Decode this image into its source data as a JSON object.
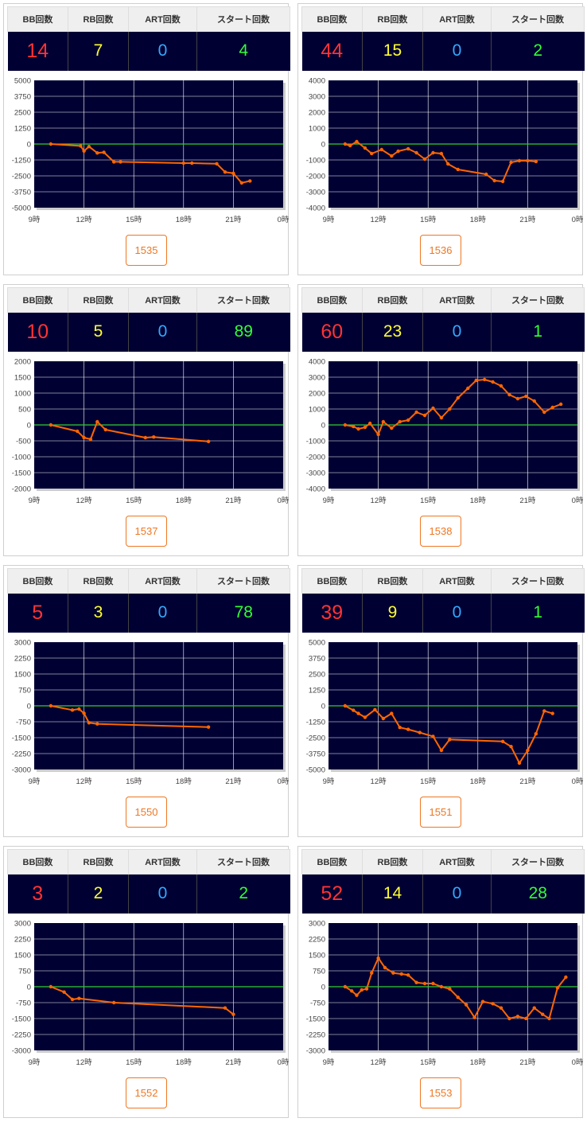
{
  "headers": {
    "bb": "BB回数",
    "rb": "RB回数",
    "art": "ART回数",
    "start": "スタート回数"
  },
  "x_ticks": [
    "9時",
    "12時",
    "15時",
    "18時",
    "21時",
    "0時"
  ],
  "colors": {
    "bb": "#ff3333",
    "rb": "#ffff33",
    "art": "#33aaff",
    "start": "#33ff33",
    "line": "#ff6600",
    "zero": "#33cc33",
    "plot_bg": "#000033",
    "badge": "#ee7722"
  },
  "machines": [
    {
      "id": "1535",
      "bb": "14",
      "rb": "7",
      "art": "0",
      "start": "4",
      "chart_data": {
        "type": "line",
        "x_unit": "hour",
        "xlim": [
          9,
          24
        ],
        "ylim": [
          -5000,
          5000
        ],
        "y_ticks": [
          "5000",
          "3750",
          "2500",
          "1250",
          "0",
          "-1250",
          "-2500",
          "-3750",
          "-5000"
        ],
        "points": [
          [
            10,
            0
          ],
          [
            11.8,
            -150
          ],
          [
            12.0,
            -550
          ],
          [
            12.3,
            -200
          ],
          [
            12.8,
            -700
          ],
          [
            13.2,
            -650
          ],
          [
            13.8,
            -1400
          ],
          [
            14.2,
            -1400
          ],
          [
            18.0,
            -1500
          ],
          [
            18.5,
            -1500
          ],
          [
            20.0,
            -1550
          ],
          [
            20.5,
            -2200
          ],
          [
            21.0,
            -2300
          ],
          [
            21.5,
            -3050
          ],
          [
            22.0,
            -2900
          ]
        ]
      }
    },
    {
      "id": "1536",
      "bb": "44",
      "rb": "15",
      "art": "0",
      "start": "2",
      "chart_data": {
        "type": "line",
        "x_unit": "hour",
        "xlim": [
          9,
          24
        ],
        "ylim": [
          -4000,
          4000
        ],
        "y_ticks": [
          "4000",
          "3000",
          "2000",
          "1000",
          "0",
          "-1000",
          "-2000",
          "-3000",
          "-4000"
        ],
        "points": [
          [
            10,
            0
          ],
          [
            10.3,
            -100
          ],
          [
            10.7,
            150
          ],
          [
            11.2,
            -250
          ],
          [
            11.6,
            -600
          ],
          [
            12.2,
            -350
          ],
          [
            12.8,
            -750
          ],
          [
            13.2,
            -450
          ],
          [
            13.8,
            -300
          ],
          [
            14.3,
            -550
          ],
          [
            14.8,
            -950
          ],
          [
            15.3,
            -550
          ],
          [
            15.8,
            -600
          ],
          [
            16.2,
            -1250
          ],
          [
            16.8,
            -1600
          ],
          [
            18.5,
            -1900
          ],
          [
            19.0,
            -2300
          ],
          [
            19.5,
            -2350
          ],
          [
            20.0,
            -1150
          ],
          [
            20.5,
            -1050
          ],
          [
            21.0,
            -1050
          ],
          [
            21.5,
            -1100
          ]
        ]
      }
    },
    {
      "id": "1537",
      "bb": "10",
      "rb": "5",
      "art": "0",
      "start": "89",
      "chart_data": {
        "type": "line",
        "x_unit": "hour",
        "xlim": [
          9,
          24
        ],
        "ylim": [
          -2000,
          2000
        ],
        "y_ticks": [
          "2000",
          "1500",
          "1000",
          "500",
          "0",
          "-500",
          "-1000",
          "-1500",
          "-2000"
        ],
        "points": [
          [
            10,
            0
          ],
          [
            11.6,
            -200
          ],
          [
            12.0,
            -400
          ],
          [
            12.4,
            -450
          ],
          [
            12.8,
            100
          ],
          [
            13.3,
            -150
          ],
          [
            15.7,
            -400
          ],
          [
            16.2,
            -380
          ],
          [
            19.5,
            -520
          ]
        ]
      }
    },
    {
      "id": "1538",
      "bb": "60",
      "rb": "23",
      "art": "0",
      "start": "1",
      "chart_data": {
        "type": "line",
        "x_unit": "hour",
        "xlim": [
          9,
          24
        ],
        "ylim": [
          -4000,
          4000
        ],
        "y_ticks": [
          "4000",
          "3000",
          "2000",
          "1000",
          "0",
          "-1000",
          "-2000",
          "-3000",
          "-4000"
        ],
        "points": [
          [
            10,
            0
          ],
          [
            10.5,
            -100
          ],
          [
            10.8,
            -250
          ],
          [
            11.2,
            -150
          ],
          [
            11.5,
            100
          ],
          [
            12.0,
            -600
          ],
          [
            12.3,
            200
          ],
          [
            12.8,
            -200
          ],
          [
            13.3,
            200
          ],
          [
            13.8,
            300
          ],
          [
            14.3,
            800
          ],
          [
            14.8,
            600
          ],
          [
            15.3,
            1050
          ],
          [
            15.8,
            450
          ],
          [
            16.3,
            1000
          ],
          [
            16.8,
            1700
          ],
          [
            17.4,
            2300
          ],
          [
            17.9,
            2800
          ],
          [
            18.4,
            2850
          ],
          [
            18.9,
            2700
          ],
          [
            19.4,
            2450
          ],
          [
            19.9,
            1900
          ],
          [
            20.4,
            1650
          ],
          [
            20.9,
            1800
          ],
          [
            21.4,
            1500
          ],
          [
            22.0,
            800
          ],
          [
            22.5,
            1100
          ],
          [
            23.0,
            1300
          ]
        ]
      }
    },
    {
      "id": "1550",
      "bb": "5",
      "rb": "3",
      "art": "0",
      "start": "78",
      "chart_data": {
        "type": "line",
        "x_unit": "hour",
        "xlim": [
          9,
          24
        ],
        "ylim": [
          -3000,
          3000
        ],
        "y_ticks": [
          "3000",
          "2250",
          "1500",
          "750",
          "0",
          "-750",
          "-1500",
          "-2250",
          "-3000"
        ],
        "points": [
          [
            10,
            0
          ],
          [
            11.3,
            -200
          ],
          [
            11.7,
            -150
          ],
          [
            12.0,
            -350
          ],
          [
            12.3,
            -800
          ],
          [
            12.8,
            -850
          ],
          [
            19.5,
            -1000
          ]
        ]
      }
    },
    {
      "id": "1551",
      "bb": "39",
      "rb": "9",
      "art": "0",
      "start": "1",
      "chart_data": {
        "type": "line",
        "x_unit": "hour",
        "xlim": [
          9,
          24
        ],
        "ylim": [
          -5000,
          5000
        ],
        "y_ticks": [
          "5000",
          "3750",
          "2500",
          "1250",
          "0",
          "-1250",
          "-2500",
          "-3750",
          "-5000"
        ],
        "points": [
          [
            10,
            0
          ],
          [
            10.5,
            -350
          ],
          [
            10.8,
            -600
          ],
          [
            11.2,
            -900
          ],
          [
            11.8,
            -300
          ],
          [
            12.3,
            -1000
          ],
          [
            12.8,
            -600
          ],
          [
            13.3,
            -1700
          ],
          [
            13.8,
            -1850
          ],
          [
            14.5,
            -2100
          ],
          [
            15.3,
            -2400
          ],
          [
            15.8,
            -3500
          ],
          [
            16.3,
            -2650
          ],
          [
            19.5,
            -2800
          ],
          [
            20.0,
            -3200
          ],
          [
            20.5,
            -4500
          ],
          [
            21.0,
            -3500
          ],
          [
            21.5,
            -2200
          ],
          [
            22.0,
            -400
          ],
          [
            22.5,
            -600
          ]
        ]
      }
    },
    {
      "id": "1552",
      "bb": "3",
      "rb": "2",
      "art": "0",
      "start": "2",
      "chart_data": {
        "type": "line",
        "x_unit": "hour",
        "xlim": [
          9,
          24
        ],
        "ylim": [
          -3000,
          3000
        ],
        "y_ticks": [
          "3000",
          "2250",
          "1500",
          "750",
          "0",
          "-750",
          "-1500",
          "-2250",
          "-3000"
        ],
        "points": [
          [
            10,
            0
          ],
          [
            10.8,
            -250
          ],
          [
            11.3,
            -600
          ],
          [
            11.7,
            -550
          ],
          [
            13.8,
            -750
          ],
          [
            20.5,
            -1000
          ],
          [
            21.0,
            -1300
          ]
        ]
      }
    },
    {
      "id": "1553",
      "bb": "52",
      "rb": "14",
      "art": "0",
      "start": "28",
      "chart_data": {
        "type": "line",
        "x_unit": "hour",
        "xlim": [
          9,
          24
        ],
        "ylim": [
          -3000,
          3000
        ],
        "y_ticks": [
          "3000",
          "2250",
          "1500",
          "750",
          "0",
          "-750",
          "-1500",
          "-2250",
          "-3000"
        ],
        "points": [
          [
            10,
            0
          ],
          [
            10.4,
            -200
          ],
          [
            10.7,
            -400
          ],
          [
            11.0,
            -150
          ],
          [
            11.3,
            -100
          ],
          [
            11.6,
            650
          ],
          [
            12.0,
            1350
          ],
          [
            12.4,
            900
          ],
          [
            12.9,
            650
          ],
          [
            13.4,
            600
          ],
          [
            13.8,
            550
          ],
          [
            14.3,
            200
          ],
          [
            14.8,
            150
          ],
          [
            15.3,
            150
          ],
          [
            15.8,
            0
          ],
          [
            16.3,
            -100
          ],
          [
            16.8,
            -500
          ],
          [
            17.3,
            -850
          ],
          [
            17.8,
            -1450
          ],
          [
            18.3,
            -700
          ],
          [
            18.9,
            -800
          ],
          [
            19.4,
            -1000
          ],
          [
            19.9,
            -1500
          ],
          [
            20.4,
            -1400
          ],
          [
            20.9,
            -1500
          ],
          [
            21.4,
            -1000
          ],
          [
            21.9,
            -1300
          ],
          [
            22.3,
            -1500
          ],
          [
            22.8,
            -50
          ],
          [
            23.3,
            450
          ]
        ]
      }
    }
  ]
}
